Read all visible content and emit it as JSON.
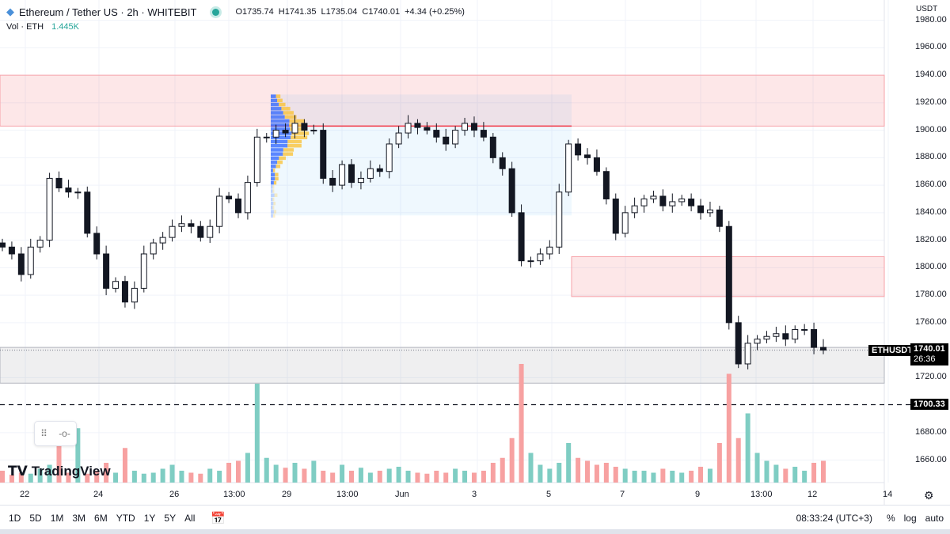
{
  "header": {
    "title": "Ethereum / Tether US · 2h · WHITEBIT",
    "open": "O1735.74",
    "high": "H1741.35",
    "low": "L1735.04",
    "close": "C1740.01",
    "change": "+4.34 (+0.25%)",
    "vol_label": "Vol · ETH",
    "vol_value": "1.445K"
  },
  "currency": "USDT",
  "price_ticks": [
    "1980.00",
    "1960.00",
    "1940.00",
    "1920.00",
    "1900.00",
    "1880.00",
    "1860.00",
    "1840.00",
    "1820.00",
    "1800.00",
    "1780.00",
    "1760.00",
    "1720.00",
    "1680.00",
    "1660.00"
  ],
  "time_ticks": [
    "22",
    "24",
    "26",
    "13:00",
    "29",
    "13:00",
    "Jun",
    "3",
    "5",
    "7",
    "9",
    "13:00",
    "12",
    "14"
  ],
  "tags": {
    "symbol": "ETHUSDT",
    "last_price": "1740.01",
    "countdown": "26:36",
    "level": "1700.33"
  },
  "toolbar": {
    "ranges": [
      "1D",
      "5D",
      "1M",
      "3M",
      "6M",
      "YTD",
      "1Y",
      "5Y",
      "All"
    ],
    "clock": "08:33:24 (UTC+3)",
    "percent": "%",
    "log": "log",
    "auto": "auto"
  },
  "logo": "TradingView",
  "colors": {
    "up": "#26a69a",
    "down": "#131722",
    "vol_up": "#7fcdc3",
    "vol_down": "#f7a1a1",
    "zone_red": "#f23645",
    "zone_gray": "#787b86"
  },
  "chart_data": {
    "type": "candlestick",
    "ylim": [
      1640,
      1990
    ],
    "closes": [
      1815,
      1810,
      1795,
      1815,
      1820,
      1865,
      1858,
      1855,
      1855,
      1825,
      1810,
      1785,
      1790,
      1775,
      1785,
      1810,
      1818,
      1822,
      1830,
      1832,
      1830,
      1822,
      1830,
      1852,
      1850,
      1840,
      1862,
      1895,
      1895,
      1900,
      1898,
      1905,
      1900,
      1900,
      1865,
      1860,
      1875,
      1862,
      1865,
      1872,
      1870,
      1890,
      1898,
      1905,
      1902,
      1900,
      1895,
      1890,
      1900,
      1905,
      1900,
      1895,
      1880,
      1872,
      1840,
      1805,
      1805,
      1810,
      1815,
      1855,
      1890,
      1882,
      1880,
      1870,
      1850,
      1825,
      1840,
      1845,
      1850,
      1852,
      1845,
      1848,
      1850,
      1845,
      1840,
      1842,
      1830,
      1760,
      1730,
      1745,
      1748,
      1750,
      1752,
      1748,
      1755,
      1755,
      1742,
      1740.01
    ],
    "volumes": [
      12,
      8,
      10,
      9,
      14,
      18,
      60,
      10,
      55,
      9,
      12,
      20,
      10,
      35,
      12,
      9,
      10,
      14,
      18,
      12,
      10,
      9,
      14,
      12,
      20,
      22,
      30,
      100,
      25,
      18,
      15,
      20,
      14,
      22,
      12,
      10,
      18,
      12,
      15,
      10,
      12,
      14,
      16,
      12,
      10,
      9,
      12,
      10,
      14,
      12,
      10,
      12,
      20,
      25,
      45,
      120,
      30,
      18,
      14,
      20,
      40,
      25,
      22,
      18,
      20,
      16,
      14,
      12,
      12,
      10,
      14,
      12,
      10,
      12,
      16,
      14,
      40,
      110,
      45,
      70,
      30,
      22,
      18,
      14,
      16,
      12,
      20,
      22
    ],
    "zones": [
      {
        "top": 1940,
        "bottom": 1903,
        "type": "resistance"
      },
      {
        "top": 1808,
        "bottom": 1779,
        "type": "resistance"
      },
      {
        "top": 1742,
        "bottom": 1716,
        "type": "support"
      }
    ],
    "hline": 1700.33
  }
}
